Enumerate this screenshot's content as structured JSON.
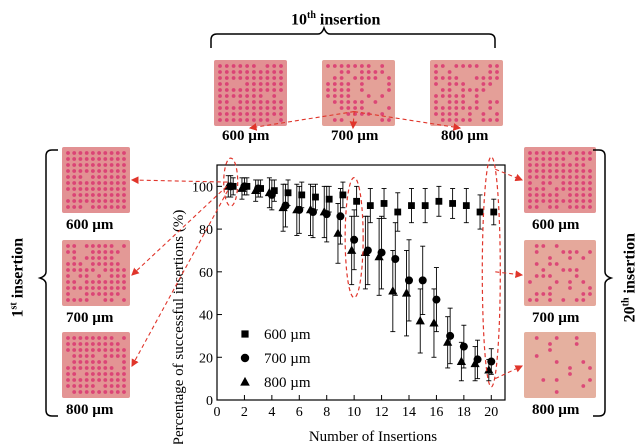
{
  "top_group": {
    "title": "10",
    "title_sup": "th",
    "title_suffix": " insertion",
    "labels": [
      "600 µm",
      "700 µm",
      "800 µm"
    ]
  },
  "left_group": {
    "title": "1",
    "title_sup": "st",
    "title_suffix": " insertion",
    "labels": [
      "600 µm",
      "700 µm",
      "800 µm"
    ]
  },
  "right_group": {
    "title": "20",
    "title_sup": "th",
    "title_suffix": " insertion",
    "labels": [
      "600 µm",
      "700 µm",
      "800 µm"
    ]
  },
  "colors": {
    "arrow": "#e0352b",
    "ellipse": "#e0352b",
    "skin": "#e8c9a8",
    "dye": "#d9306e"
  },
  "chart_data": {
    "type": "scatter",
    "xlabel": "Number of Insertions",
    "ylabel": "Percentage of successful insertions (%)",
    "xlim": [
      0,
      21
    ],
    "ylim": [
      0,
      110
    ],
    "xticks": [
      0,
      2,
      4,
      6,
      8,
      10,
      12,
      14,
      16,
      18,
      20
    ],
    "yticks": [
      0,
      20,
      40,
      60,
      80,
      100
    ],
    "legend": "bottom-left",
    "x": [
      1,
      2,
      3,
      4,
      5,
      6,
      7,
      8,
      9,
      10,
      11,
      12,
      13,
      14,
      15,
      16,
      17,
      18,
      19,
      20
    ],
    "series": [
      {
        "name": "600 µm",
        "marker": "square",
        "values": [
          100,
          100,
          99,
          98,
          97,
          96,
          95,
          94,
          96,
          93,
          91,
          92,
          88,
          91,
          91,
          93,
          92,
          91,
          88,
          88
        ],
        "errors": [
          4,
          4,
          4,
          5,
          6,
          6,
          6,
          6,
          6,
          7,
          8,
          7,
          9,
          8,
          8,
          7,
          7,
          8,
          8,
          6
        ]
      },
      {
        "name": "700 µm",
        "marker": "circle",
        "values": [
          100,
          100,
          99,
          96,
          91,
          89,
          88,
          87,
          86,
          75,
          70,
          69,
          66,
          56,
          56,
          47,
          30,
          25,
          19,
          18
        ],
        "errors": [
          5,
          4,
          4,
          7,
          10,
          11,
          12,
          13,
          13,
          14,
          16,
          17,
          17,
          19,
          16,
          15,
          13,
          10,
          9,
          6
        ]
      },
      {
        "name": "800 µm",
        "marker": "triangle",
        "values": [
          100,
          99,
          98,
          97,
          90,
          89,
          89,
          88,
          78,
          70,
          69,
          67,
          51,
          50,
          37,
          36,
          27,
          18,
          17,
          14
        ],
        "errors": [
          5,
          5,
          5,
          7,
          11,
          12,
          12,
          12,
          14,
          16,
          17,
          18,
          19,
          20,
          15,
          16,
          12,
          9,
          8,
          5
        ]
      }
    ]
  }
}
